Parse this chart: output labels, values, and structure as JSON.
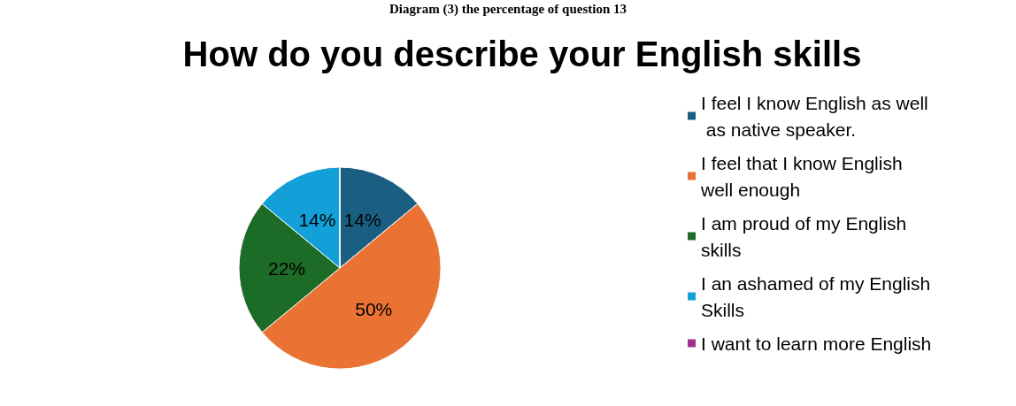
{
  "chart_data": {
    "type": "pie",
    "title": "How do you describe your English skills",
    "annotations": [
      "Diagram (3) the percentage of question 13"
    ],
    "categories": [
      "I feel I know English as well as native speaker.",
      "I feel that I know English well enough",
      "I am proud of my English skills",
      "I an ashamed of my English Skills",
      "I want to learn more English"
    ],
    "values": [
      14,
      50,
      22,
      14,
      0
    ],
    "colors": [
      "#1a5f82",
      "#ea7233",
      "#1c6b27",
      "#13a0d8",
      "#a0308f"
    ],
    "value_labels": [
      "14%",
      "50%",
      "22%",
      "14%",
      null
    ],
    "legend": "right"
  }
}
